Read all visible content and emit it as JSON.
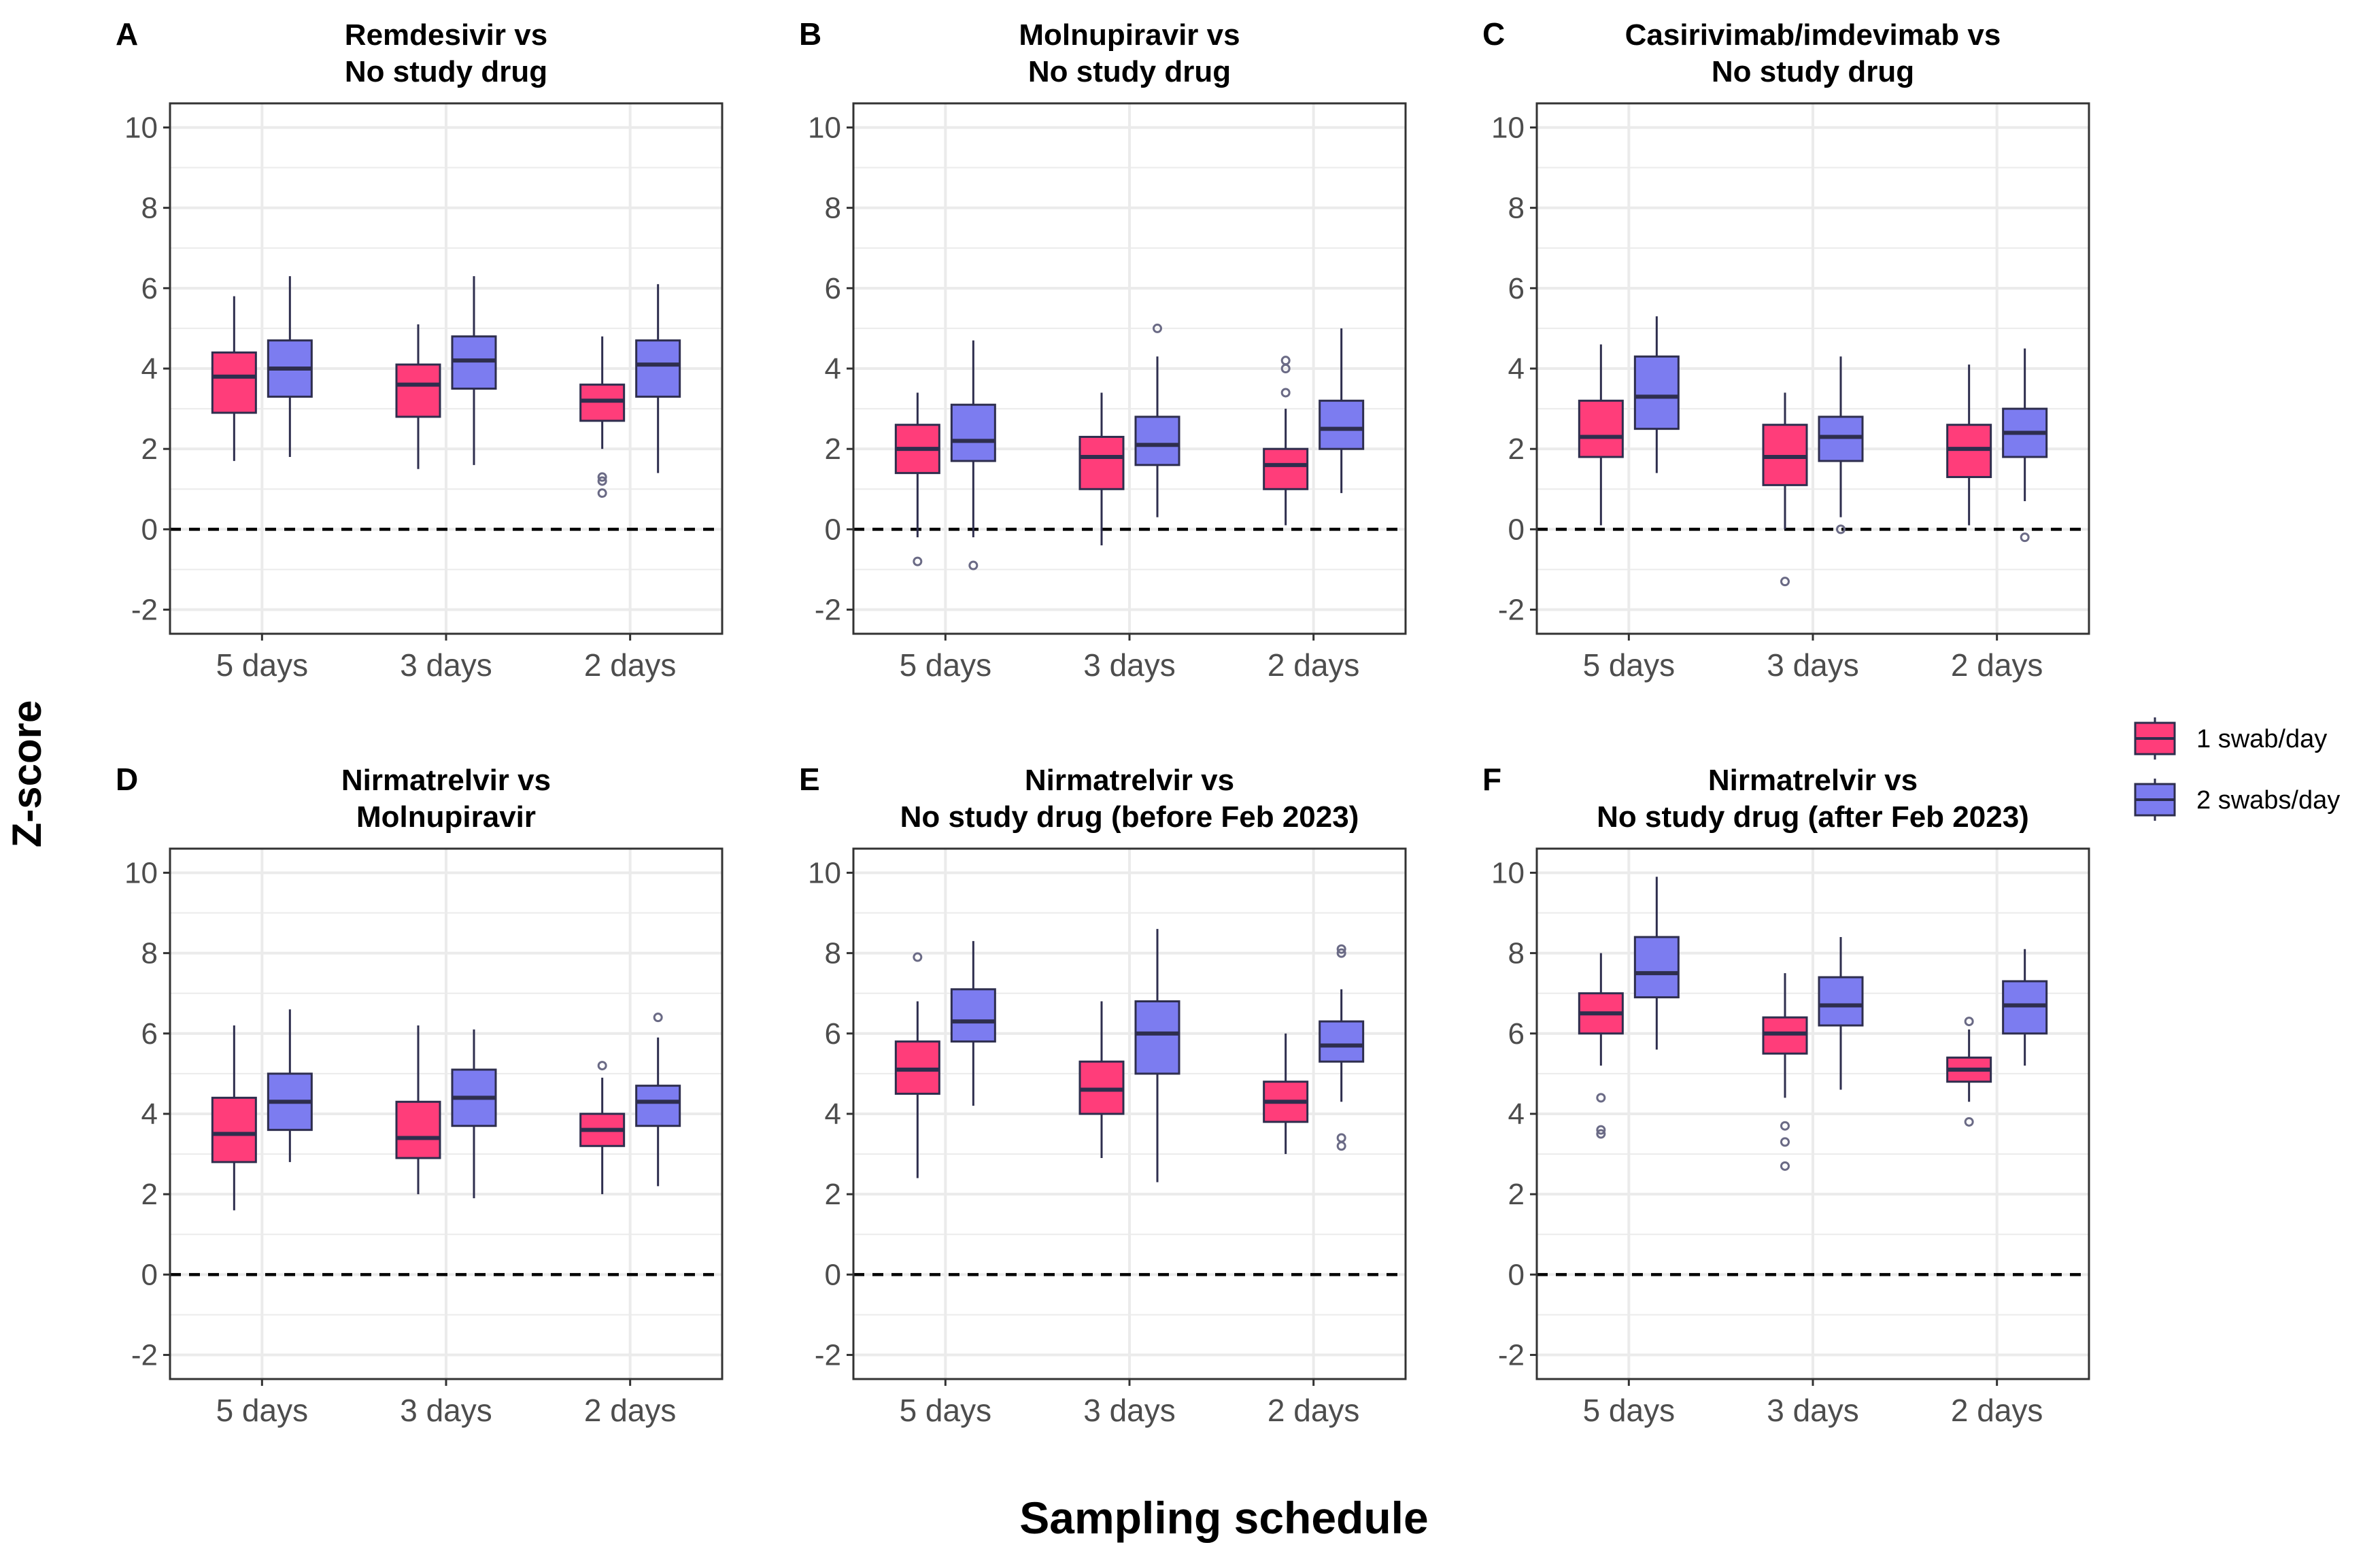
{
  "figure": {
    "ylabel": "Z-score",
    "xlabel": "Sampling schedule",
    "legend": {
      "position": "right",
      "items": [
        {
          "label": "1 swab/day",
          "color": "#FF3D7A"
        },
        {
          "label": "2 swabs/day",
          "color": "#7C7CF0"
        }
      ]
    },
    "colors": {
      "line": "#2E2E4E",
      "grid": "#EBEBEB",
      "panel_border": "#333333",
      "reference_line": "#000000"
    }
  },
  "chart_data": [
    {
      "type": "box",
      "panel_letter": "A",
      "title_lines": [
        "Remdesivir vs",
        "No study drug"
      ],
      "categories": [
        "5 days",
        "3 days",
        "2 days"
      ],
      "ylim": [
        -2.6,
        10.6
      ],
      "yticks": [
        -2,
        0,
        2,
        4,
        6,
        8,
        10
      ],
      "reference_line_y": 0,
      "series": [
        {
          "name": "1 swab/day",
          "boxes": [
            {
              "min": 1.7,
              "q1": 2.9,
              "median": 3.8,
              "q3": 4.4,
              "max": 5.8,
              "outliers": []
            },
            {
              "min": 1.5,
              "q1": 2.8,
              "median": 3.6,
              "q3": 4.1,
              "max": 5.1,
              "outliers": []
            },
            {
              "min": 2.0,
              "q1": 2.7,
              "median": 3.2,
              "q3": 3.6,
              "max": 4.8,
              "outliers": [
                1.3,
                1.2,
                0.9
              ]
            }
          ]
        },
        {
          "name": "2 swabs/day",
          "boxes": [
            {
              "min": 1.8,
              "q1": 3.3,
              "median": 4.0,
              "q3": 4.7,
              "max": 6.3,
              "outliers": []
            },
            {
              "min": 1.6,
              "q1": 3.5,
              "median": 4.2,
              "q3": 4.8,
              "max": 6.3,
              "outliers": []
            },
            {
              "min": 1.4,
              "q1": 3.3,
              "median": 4.1,
              "q3": 4.7,
              "max": 6.1,
              "outliers": []
            }
          ]
        }
      ]
    },
    {
      "type": "box",
      "panel_letter": "B",
      "title_lines": [
        "Molnupiravir vs",
        "No study drug"
      ],
      "categories": [
        "5 days",
        "3 days",
        "2 days"
      ],
      "ylim": [
        -2.6,
        10.6
      ],
      "yticks": [
        -2,
        0,
        2,
        4,
        6,
        8,
        10
      ],
      "reference_line_y": 0,
      "series": [
        {
          "name": "1 swab/day",
          "boxes": [
            {
              "min": -0.2,
              "q1": 1.4,
              "median": 2.0,
              "q3": 2.6,
              "max": 3.4,
              "outliers": [
                -0.8
              ]
            },
            {
              "min": -0.4,
              "q1": 1.0,
              "median": 1.8,
              "q3": 2.3,
              "max": 3.4,
              "outliers": []
            },
            {
              "min": 0.1,
              "q1": 1.0,
              "median": 1.6,
              "q3": 2.0,
              "max": 3.0,
              "outliers": [
                3.4,
                4.0,
                4.2
              ]
            }
          ]
        },
        {
          "name": "2 swabs/day",
          "boxes": [
            {
              "min": -0.2,
              "q1": 1.7,
              "median": 2.2,
              "q3": 3.1,
              "max": 4.7,
              "outliers": [
                -0.9
              ]
            },
            {
              "min": 0.3,
              "q1": 1.6,
              "median": 2.1,
              "q3": 2.8,
              "max": 4.3,
              "outliers": [
                5.0
              ]
            },
            {
              "min": 0.9,
              "q1": 2.0,
              "median": 2.5,
              "q3": 3.2,
              "max": 5.0,
              "outliers": []
            }
          ]
        }
      ]
    },
    {
      "type": "box",
      "panel_letter": "C",
      "title_lines": [
        "Casirivimab/imdevimab vs",
        "No study drug"
      ],
      "categories": [
        "5 days",
        "3 days",
        "2 days"
      ],
      "ylim": [
        -2.6,
        10.6
      ],
      "yticks": [
        -2,
        0,
        2,
        4,
        6,
        8,
        10
      ],
      "reference_line_y": 0,
      "series": [
        {
          "name": "1 swab/day",
          "boxes": [
            {
              "min": 0.1,
              "q1": 1.8,
              "median": 2.3,
              "q3": 3.2,
              "max": 4.6,
              "outliers": []
            },
            {
              "min": 0.0,
              "q1": 1.1,
              "median": 1.8,
              "q3": 2.6,
              "max": 3.4,
              "outliers": [
                -1.3
              ]
            },
            {
              "min": 0.1,
              "q1": 1.3,
              "median": 2.0,
              "q3": 2.6,
              "max": 4.1,
              "outliers": []
            }
          ]
        },
        {
          "name": "2 swabs/day",
          "boxes": [
            {
              "min": 1.4,
              "q1": 2.5,
              "median": 3.3,
              "q3": 4.3,
              "max": 5.3,
              "outliers": []
            },
            {
              "min": 0.3,
              "q1": 1.7,
              "median": 2.3,
              "q3": 2.8,
              "max": 4.3,
              "outliers": [
                0.0
              ]
            },
            {
              "min": 0.7,
              "q1": 1.8,
              "median": 2.4,
              "q3": 3.0,
              "max": 4.5,
              "outliers": [
                -0.2
              ]
            }
          ]
        }
      ]
    },
    {
      "type": "box",
      "panel_letter": "D",
      "title_lines": [
        "Nirmatrelvir vs",
        "Molnupiravir"
      ],
      "categories": [
        "5 days",
        "3 days",
        "2 days"
      ],
      "ylim": [
        -2.6,
        10.6
      ],
      "yticks": [
        -2,
        0,
        2,
        4,
        6,
        8,
        10
      ],
      "reference_line_y": 0,
      "series": [
        {
          "name": "1 swab/day",
          "boxes": [
            {
              "min": 1.6,
              "q1": 2.8,
              "median": 3.5,
              "q3": 4.4,
              "max": 6.2,
              "outliers": []
            },
            {
              "min": 2.0,
              "q1": 2.9,
              "median": 3.4,
              "q3": 4.3,
              "max": 6.2,
              "outliers": []
            },
            {
              "min": 2.0,
              "q1": 3.2,
              "median": 3.6,
              "q3": 4.0,
              "max": 4.9,
              "outliers": [
                5.2
              ]
            }
          ]
        },
        {
          "name": "2 swabs/day",
          "boxes": [
            {
              "min": 2.8,
              "q1": 3.6,
              "median": 4.3,
              "q3": 5.0,
              "max": 6.6,
              "outliers": []
            },
            {
              "min": 1.9,
              "q1": 3.7,
              "median": 4.4,
              "q3": 5.1,
              "max": 6.1,
              "outliers": []
            },
            {
              "min": 2.2,
              "q1": 3.7,
              "median": 4.3,
              "q3": 4.7,
              "max": 5.9,
              "outliers": [
                6.4
              ]
            }
          ]
        }
      ]
    },
    {
      "type": "box",
      "panel_letter": "E",
      "title_lines": [
        "Nirmatrelvir vs",
        "No study drug (before Feb 2023)"
      ],
      "categories": [
        "5 days",
        "3 days",
        "2 days"
      ],
      "ylim": [
        -2.6,
        10.6
      ],
      "yticks": [
        -2,
        0,
        2,
        4,
        6,
        8,
        10
      ],
      "reference_line_y": 0,
      "series": [
        {
          "name": "1 swab/day",
          "boxes": [
            {
              "min": 2.4,
              "q1": 4.5,
              "median": 5.1,
              "q3": 5.8,
              "max": 6.8,
              "outliers": [
                7.9
              ]
            },
            {
              "min": 2.9,
              "q1": 4.0,
              "median": 4.6,
              "q3": 5.3,
              "max": 6.8,
              "outliers": []
            },
            {
              "min": 3.0,
              "q1": 3.8,
              "median": 4.3,
              "q3": 4.8,
              "max": 6.0,
              "outliers": []
            }
          ]
        },
        {
          "name": "2 swabs/day",
          "boxes": [
            {
              "min": 4.2,
              "q1": 5.8,
              "median": 6.3,
              "q3": 7.1,
              "max": 8.3,
              "outliers": []
            },
            {
              "min": 2.3,
              "q1": 5.0,
              "median": 6.0,
              "q3": 6.8,
              "max": 8.6,
              "outliers": []
            },
            {
              "min": 4.3,
              "q1": 5.3,
              "median": 5.7,
              "q3": 6.3,
              "max": 7.1,
              "outliers": [
                8.0,
                8.1,
                3.4,
                3.2
              ]
            }
          ]
        }
      ]
    },
    {
      "type": "box",
      "panel_letter": "F",
      "title_lines": [
        "Nirmatrelvir vs",
        "No study drug (after Feb 2023)"
      ],
      "categories": [
        "5 days",
        "3 days",
        "2 days"
      ],
      "ylim": [
        -2.6,
        10.6
      ],
      "yticks": [
        -2,
        0,
        2,
        4,
        6,
        8,
        10
      ],
      "reference_line_y": 0,
      "series": [
        {
          "name": "1 swab/day",
          "boxes": [
            {
              "min": 5.2,
              "q1": 6.0,
              "median": 6.5,
              "q3": 7.0,
              "max": 8.0,
              "outliers": [
                4.4,
                3.6,
                3.5
              ]
            },
            {
              "min": 4.4,
              "q1": 5.5,
              "median": 6.0,
              "q3": 6.4,
              "max": 7.5,
              "outliers": [
                3.7,
                3.3,
                2.7
              ]
            },
            {
              "min": 4.3,
              "q1": 4.8,
              "median": 5.1,
              "q3": 5.4,
              "max": 6.1,
              "outliers": [
                6.3,
                3.8
              ]
            }
          ]
        },
        {
          "name": "2 swabs/day",
          "boxes": [
            {
              "min": 5.6,
              "q1": 6.9,
              "median": 7.5,
              "q3": 8.4,
              "max": 9.9,
              "outliers": []
            },
            {
              "min": 4.6,
              "q1": 6.2,
              "median": 6.7,
              "q3": 7.4,
              "max": 8.4,
              "outliers": []
            },
            {
              "min": 5.2,
              "q1": 6.0,
              "median": 6.7,
              "q3": 7.3,
              "max": 8.1,
              "outliers": []
            }
          ]
        }
      ]
    }
  ]
}
